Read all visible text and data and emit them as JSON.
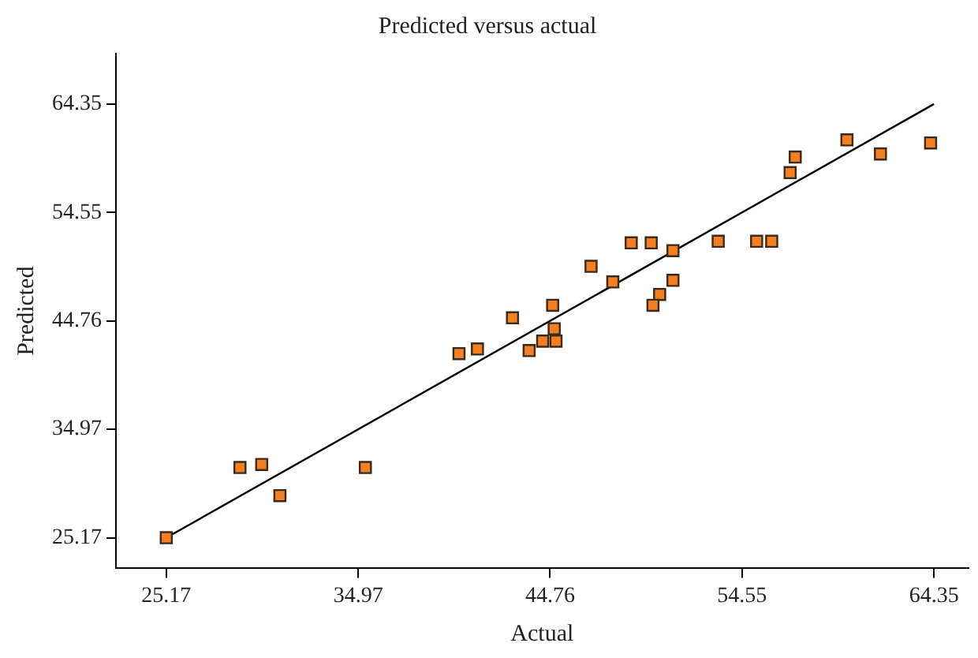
{
  "chart_data": {
    "type": "scatter",
    "title": "Predicted versus actual",
    "xlabel": "Actual",
    "ylabel": "Predicted",
    "xlim": [
      22.6,
      66.1
    ],
    "ylim": [
      22.4,
      68.9
    ],
    "xticks": [
      25.17,
      34.97,
      44.76,
      54.55,
      64.35
    ],
    "yticks": [
      25.17,
      34.97,
      44.76,
      54.55,
      64.35
    ],
    "grid": false,
    "legend": false,
    "marker": "square",
    "series": [
      {
        "color": "#f47f20",
        "x": [
          25.17,
          28.93,
          30.04,
          30.97,
          35.33,
          40.11,
          41.05,
          42.84,
          43.69,
          44.38,
          45.06,
          44.97,
          44.89,
          46.85,
          47.96,
          48.9,
          49.92,
          51.03,
          51.03,
          50.35,
          50.01,
          53.34,
          55.3,
          56.07,
          57.01,
          57.27,
          59.91,
          61.62,
          64.18
        ],
        "values": [
          25.17,
          31.51,
          31.79,
          28.97,
          31.51,
          41.8,
          42.22,
          45.04,
          42.08,
          42.93,
          42.93,
          44.05,
          46.17,
          49.69,
          48.28,
          51.81,
          51.81,
          51.1,
          48.42,
          47.15,
          46.17,
          51.95,
          51.95,
          51.95,
          58.15,
          59.56,
          61.11,
          59.84,
          60.83
        ]
      },
      {
        "type": "line",
        "color": "#000000",
        "marker": "none",
        "line_style": "solid",
        "x": [
          25.17,
          64.35
        ],
        "values": [
          25.17,
          64.35
        ]
      }
    ]
  }
}
